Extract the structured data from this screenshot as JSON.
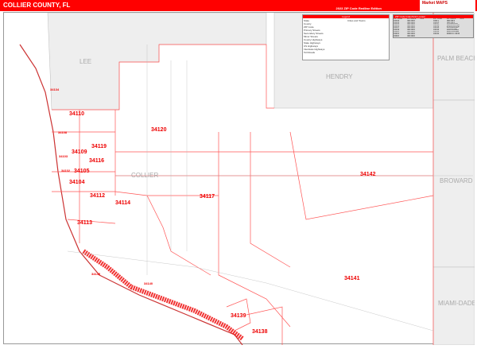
{
  "header": {
    "title": "COLLIER COUNTY, FL",
    "edition": "2023 ZIP Code Redline Edition",
    "logo": "Market MAPS"
  },
  "colors": {
    "header": "#ff0000",
    "zip_boundary": "#e00000",
    "adjacent_county": "#eeeeee"
  },
  "counties": {
    "lee": "LEE",
    "hendry": "HENDRY",
    "palm_beach": "PALM BEACH",
    "broward": "BROWARD",
    "miami_dade": "MIAMI-DADE",
    "collier": "COLLIER"
  },
  "zips": {
    "z34110": "34110",
    "z34120": "34120",
    "z34108": "34108",
    "z34119": "34119",
    "z34109": "34109",
    "z34116": "34116",
    "z34103": "34103",
    "z34105": "34105",
    "z34102": "34102",
    "z34104": "34104",
    "z34112": "34112",
    "z34114": "34114",
    "z34117": "34117",
    "z34142": "34142",
    "z34113": "34113",
    "z34145": "34145",
    "z34140": "34140",
    "z34139": "34139",
    "z34138": "34138",
    "z34141": "34141",
    "z34134": "34134"
  },
  "legend": {
    "title": "Legend",
    "items": [
      "State",
      "County",
      "ZIP Code",
      "Primary Streets",
      "Secondary Streets",
      "Minor Streets",
      "County Highways",
      "State Highways",
      "US Highways",
      "Interstate Highways",
      "Toll Roads"
    ],
    "cities_title": "Cities and Towns"
  },
  "index": {
    "title": "ZIP Code Index/Grid Locator",
    "headers": [
      "ZIP Code",
      "ZIP Name",
      "Grid",
      "ZIP Code",
      "ZIP Name",
      "Grid"
    ],
    "rows": [
      [
        "34101",
        "NAPLES",
        "",
        "34117",
        "NAPLES",
        ""
      ],
      [
        "34102",
        "NAPLES",
        "",
        "34119",
        "NAPLES",
        ""
      ],
      [
        "34103",
        "NAPLES",
        "",
        "34120",
        "NAPLES",
        ""
      ],
      [
        "34104",
        "NAPLES",
        "",
        "34137",
        "COPELAND",
        ""
      ],
      [
        "34105",
        "NAPLES",
        "",
        "34138",
        "CHOKOLOSKEE",
        ""
      ],
      [
        "34106",
        "NAPLES",
        "",
        "34139",
        "EVERGLADES CITY",
        ""
      ],
      [
        "34107",
        "NAPLES",
        "",
        "34140",
        "GOODLAND",
        ""
      ],
      [
        "34108",
        "NAPLES",
        "",
        "34141",
        "OCHOPEE",
        ""
      ],
      [
        "34109",
        "NAPLES",
        "",
        "34142",
        "IMMOKALEE",
        ""
      ],
      [
        "34110",
        "NAPLES",
        "",
        "34143",
        "IMMOKALEE",
        ""
      ],
      [
        "34112",
        "NAPLES",
        "",
        "34145",
        "MARCO ISLAND",
        ""
      ],
      [
        "34113",
        "NAPLES",
        "",
        "34146",
        "MARCO ISLAND",
        ""
      ],
      [
        "34114",
        "NAPLES",
        "",
        "",
        "",
        ""
      ],
      [
        "34116",
        "NAPLES",
        "",
        "",
        "",
        ""
      ]
    ]
  }
}
